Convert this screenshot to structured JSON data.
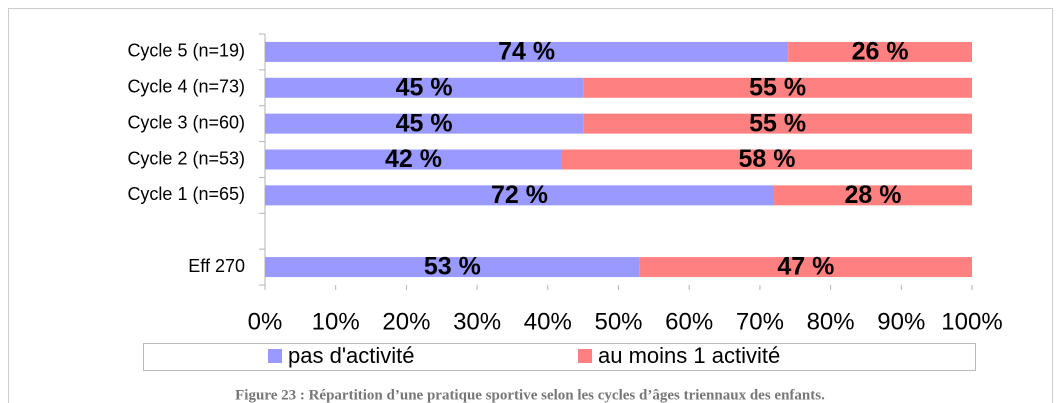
{
  "chart_data": {
    "type": "stacked_barh",
    "categories": [
      "Cycle 5 (n=19)",
      "Cycle 4 (n=73)",
      "Cycle 3 (n=60)",
      "Cycle 2 (n=53)",
      "Cycle 1 (n=65)",
      null,
      "Eff 270"
    ],
    "series": [
      {
        "name": "pas d'activité",
        "color": "#9999ff",
        "values": [
          74,
          45,
          45,
          42,
          72,
          null,
          53
        ],
        "value_labels": [
          "74 %",
          "45 %",
          "45 %",
          "42 %",
          "72 %",
          null,
          "53 %"
        ]
      },
      {
        "name": "au moins 1 activité",
        "color": "#ff8080",
        "values": [
          26,
          55,
          55,
          58,
          28,
          null,
          47
        ],
        "value_labels": [
          "26 %",
          "55 %",
          "55 %",
          "58 %",
          "28 %",
          null,
          "47 %"
        ]
      }
    ],
    "xlim": [
      0,
      100
    ],
    "xticks": [
      {
        "value": 0,
        "label": "0%"
      },
      {
        "value": 10,
        "label": "10%"
      },
      {
        "value": 20,
        "label": "20%"
      },
      {
        "value": 30,
        "label": "30%"
      },
      {
        "value": 40,
        "label": "40%"
      },
      {
        "value": 50,
        "label": "50%"
      },
      {
        "value": 60,
        "label": "60%"
      },
      {
        "value": 70,
        "label": "70%"
      },
      {
        "value": 80,
        "label": "80%"
      },
      {
        "value": 90,
        "label": "90%"
      },
      {
        "value": 100,
        "label": "100%"
      }
    ],
    "legend": "bottom",
    "caption": "Figure 23 : Répartition d’une pratique sportive selon les cycles d’âges triennaux des enfants."
  }
}
